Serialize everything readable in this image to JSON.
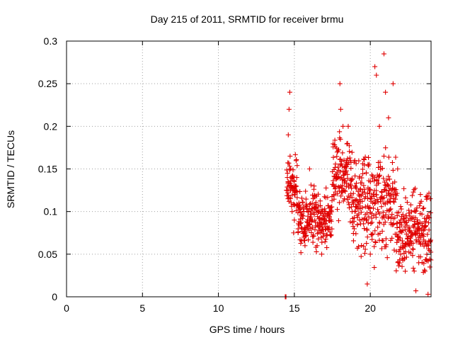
{
  "chart_data": {
    "type": "scatter",
    "title": "Day 215 of 2011, SRMTID for receiver brmu",
    "xlabel": "GPS time / hours",
    "ylabel": "SRMTID / TECUs",
    "xlim": [
      0,
      24
    ],
    "ylim": [
      0,
      0.3
    ],
    "xticks": [
      0,
      5,
      10,
      15,
      20
    ],
    "xtick_labels": [
      "0",
      "5",
      "10",
      "15",
      "20"
    ],
    "yticks": [
      0,
      0.05,
      0.1,
      0.15,
      0.2,
      0.25,
      0.3
    ],
    "ytick_labels": [
      "0",
      "0.05",
      "0.1",
      "0.15",
      "0.2",
      "0.25",
      "0.3"
    ],
    "grid": true,
    "marker": "+",
    "color": "#e00000",
    "series": [
      {
        "name": "SRMTID",
        "x_range": [
          14.4,
          24.0
        ],
        "typical_range": [
          0.04,
          0.17
        ],
        "points": [
          [
            14.4,
            0.0
          ],
          [
            14.45,
            0.0
          ],
          [
            14.55,
            0.145
          ],
          [
            14.6,
            0.19
          ],
          [
            14.65,
            0.22
          ],
          [
            14.7,
            0.24
          ],
          [
            14.72,
            0.165
          ],
          [
            14.8,
            0.13
          ],
          [
            14.85,
            0.1
          ],
          [
            14.95,
            0.075
          ],
          [
            15.0,
            0.09
          ],
          [
            15.05,
            0.12
          ],
          [
            15.3,
            0.11
          ],
          [
            15.5,
            0.08
          ],
          [
            15.7,
            0.06
          ],
          [
            15.9,
            0.1
          ],
          [
            16.0,
            0.15
          ],
          [
            16.1,
            0.08
          ],
          [
            16.3,
            0.13
          ],
          [
            16.5,
            0.06
          ],
          [
            16.8,
            0.05
          ],
          [
            17.0,
            0.09
          ],
          [
            17.3,
            0.1
          ],
          [
            17.6,
            0.12
          ],
          [
            17.8,
            0.14
          ],
          [
            18.0,
            0.25
          ],
          [
            18.05,
            0.22
          ],
          [
            18.2,
            0.2
          ],
          [
            18.5,
            0.18
          ],
          [
            18.8,
            0.1
          ],
          [
            19.0,
            0.13
          ],
          [
            19.3,
            0.09
          ],
          [
            19.6,
            0.08
          ],
          [
            19.8,
            0.015
          ],
          [
            20.0,
            0.05
          ],
          [
            20.2,
            0.12
          ],
          [
            20.3,
            0.27
          ],
          [
            20.4,
            0.26
          ],
          [
            20.6,
            0.2
          ],
          [
            20.9,
            0.285
          ],
          [
            21.0,
            0.24
          ],
          [
            21.2,
            0.21
          ],
          [
            21.5,
            0.25
          ],
          [
            21.8,
            0.15
          ],
          [
            22.0,
            0.09
          ],
          [
            22.3,
            0.03
          ],
          [
            22.6,
            0.06
          ],
          [
            23.0,
            0.007
          ],
          [
            23.3,
            0.12
          ],
          [
            23.6,
            0.03
          ],
          [
            23.8,
            0.003
          ]
        ]
      }
    ]
  }
}
